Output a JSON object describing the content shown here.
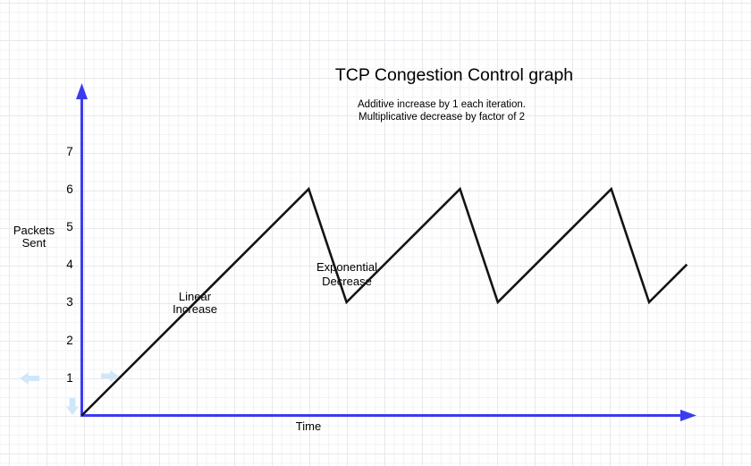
{
  "title": "TCP Congestion Control graph",
  "subtitle": {
    "line1": "Additive increase by 1 each iteration.",
    "line2": "Multiplicative decrease by factor of 2"
  },
  "axes": {
    "y_label_line1": "Packets",
    "y_label_line2": "Sent",
    "x_label": "Time",
    "y_ticks_top_to_bottom": [
      "7",
      "6",
      "5",
      "4",
      "3",
      "2",
      "1"
    ]
  },
  "annotations": {
    "linear_line1": "Linear",
    "linear_line2": "Increase",
    "exponential_line1": "Exponential",
    "exponential_line2": "Decrease"
  },
  "ghost_arrows": [
    {
      "icon": "ghost-arrow-left-icon",
      "direction": "left"
    },
    {
      "icon": "ghost-arrow-right-icon",
      "direction": "right"
    },
    {
      "icon": "ghost-arrow-down-icon",
      "direction": "down"
    }
  ],
  "colors": {
    "bg": "#ffffff",
    "text": "#000000",
    "axis": "#3b3bee",
    "line": "#141414",
    "ghost": "#cfe7f9",
    "grid_minor": "#f3f3f6",
    "grid_major": "#e8e8ed"
  },
  "chart_data": {
    "type": "line",
    "title": "TCP Congestion Control graph",
    "subtitle": "Additive increase by 1 each iteration. Multiplicative decrease by factor of 2",
    "xlabel": "Time",
    "ylabel": "Packets Sent",
    "x": [
      0,
      6,
      7,
      10,
      11,
      14,
      15,
      16
    ],
    "y": [
      0,
      6,
      3,
      6,
      3,
      6,
      3,
      4
    ],
    "y_tick_values": [
      1,
      2,
      3,
      4,
      5,
      6,
      7
    ],
    "xlim": [
      0,
      16.3
    ],
    "ylim": [
      0,
      7.8
    ],
    "grid": false,
    "legend": false,
    "line_color": "#141414",
    "axis_color": "#3b3bee",
    "annotations": [
      {
        "text": "Linear Increase",
        "near_x": 3,
        "near_y": 3
      },
      {
        "text": "Exponential Decrease",
        "near_x": 7,
        "near_y": 3.8
      }
    ]
  }
}
